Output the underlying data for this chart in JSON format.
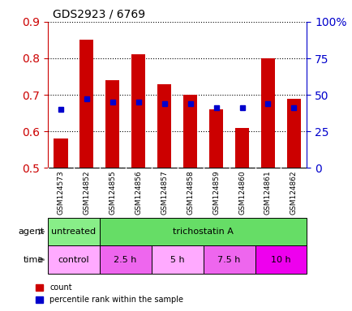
{
  "title": "GDS2923 / 6769",
  "samples": [
    "GSM124573",
    "GSM124852",
    "GSM124855",
    "GSM124856",
    "GSM124857",
    "GSM124858",
    "GSM124859",
    "GSM124860",
    "GSM124861",
    "GSM124862"
  ],
  "bar_bottom": 0.5,
  "red_values": [
    0.58,
    0.85,
    0.74,
    0.81,
    0.73,
    0.7,
    0.66,
    0.61,
    0.8,
    0.69
  ],
  "blue_values": [
    0.66,
    0.69,
    0.68,
    0.68,
    0.675,
    0.675,
    0.665,
    0.665,
    0.675,
    0.665
  ],
  "ylim": [
    0.5,
    0.9
  ],
  "yticks_left": [
    0.5,
    0.6,
    0.7,
    0.8,
    0.9
  ],
  "yticks_right": [
    0,
    25,
    50,
    75,
    100
  ],
  "ytick_labels_right": [
    "0",
    "25",
    "50",
    "75",
    "100%"
  ],
  "agent_row": [
    {
      "label": "untreated",
      "start": 0,
      "end": 2,
      "color": "#88ee88"
    },
    {
      "label": "trichostatin A",
      "start": 2,
      "end": 10,
      "color": "#66dd66"
    }
  ],
  "time_row": [
    {
      "label": "control",
      "start": 0,
      "end": 2,
      "color": "#ffaaff"
    },
    {
      "label": "2.5 h",
      "start": 2,
      "end": 4,
      "color": "#ee77ee"
    },
    {
      "label": "5 h",
      "start": 4,
      "end": 6,
      "color": "#ffaaff"
    },
    {
      "label": "7.5 h",
      "start": 6,
      "end": 8,
      "color": "#ee77ee"
    },
    {
      "label": "10 h",
      "start": 8,
      "end": 10,
      "color": "#ee44ee"
    }
  ],
  "bar_color_red": "#cc0000",
  "bar_color_blue": "#0000cc",
  "tick_color_left": "#cc0000",
  "tick_color_right": "#0000cc",
  "bg_color": "#ffffff",
  "xticklabel_bg": "#cccccc",
  "agent_green_light": "#99ee88",
  "agent_green_dark": "#66cc55",
  "time_pink_light": "#ffaaff",
  "time_pink_dark": "#ee66ee",
  "time_pink_bright": "#ee00ee"
}
